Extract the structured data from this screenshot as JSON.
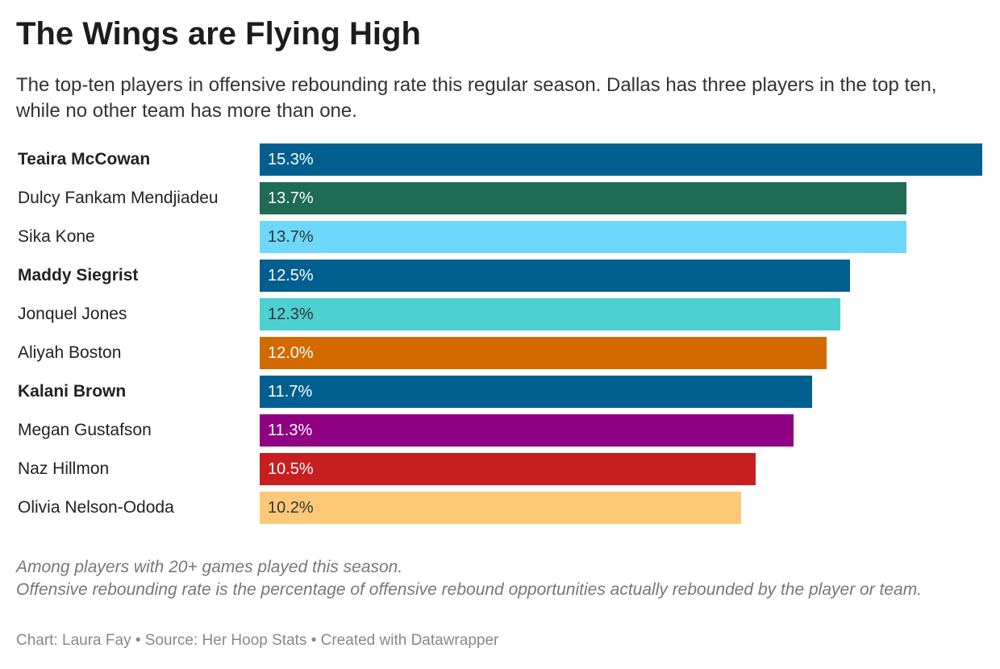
{
  "header": {
    "title": "The Wings are Flying High",
    "subtitle": "The top-ten players in offensive rebounding rate this regular season. Dallas has three players in the top ten, while no other team has more than one."
  },
  "chart_data": {
    "type": "bar",
    "orientation": "horizontal",
    "xlim": [
      0,
      15.3
    ],
    "categories": [
      "Teaira McCowan",
      "Dulcy Fankam Mendjiadeu",
      "Sika Kone",
      "Maddy Siegrist",
      "Jonquel Jones",
      "Aliyah Boston",
      "Kalani Brown",
      "Megan Gustafson",
      "Naz Hillmon",
      "Olivia Nelson-Ododa"
    ],
    "values": [
      15.3,
      13.7,
      13.7,
      12.5,
      12.3,
      12.0,
      11.7,
      11.3,
      10.5,
      10.2
    ],
    "labels": [
      "15.3%",
      "13.7%",
      "13.7%",
      "12.5%",
      "12.3%",
      "12.0%",
      "11.7%",
      "11.3%",
      "10.5%",
      "10.2%"
    ],
    "bold": [
      true,
      false,
      false,
      true,
      false,
      false,
      true,
      false,
      false,
      false
    ],
    "colors": [
      "#005f8f",
      "#1f6b54",
      "#6ed8fb",
      "#005f8f",
      "#4ecfd0",
      "#d26a00",
      "#005f8f",
      "#8f0083",
      "#c71e1f",
      "#fdc977"
    ],
    "label_colors": [
      "#ffffff",
      "#ffffff",
      "#333333",
      "#ffffff",
      "#333333",
      "#ffffff",
      "#ffffff",
      "#ffffff",
      "#ffffff",
      "#333333"
    ]
  },
  "notes": {
    "line1": "Among players with 20+ games played this season.",
    "line2": "Offensive rebounding rate is the percentage of offensive rebound opportunities actually rebounded by the player or team."
  },
  "footer": "Chart: Laura Fay • Source: Her Hoop Stats • Created with Datawrapper"
}
